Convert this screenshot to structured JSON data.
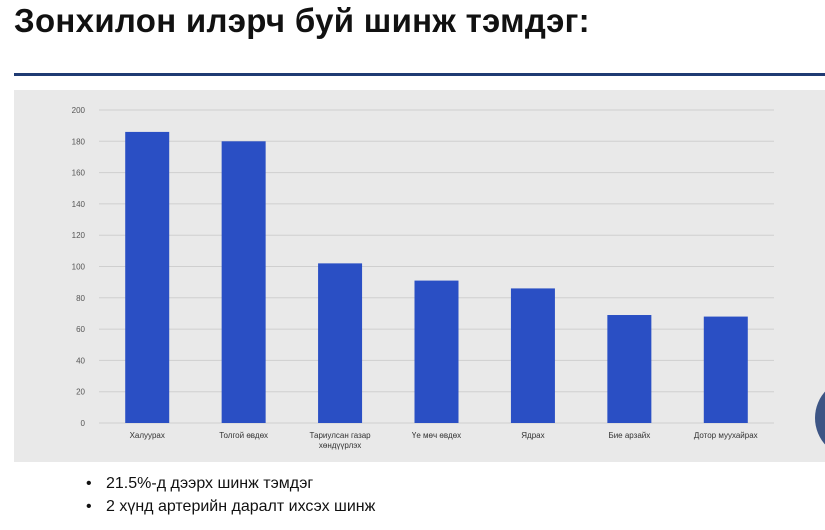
{
  "slide": {
    "title": "Зонхилон илэрч буй шинж тэмдэг:"
  },
  "bullets": [
    "21.5%-д дээрх шинж тэмдэг",
    "2 хүнд артерийн даралт ихсэх шинж"
  ],
  "colors": {
    "bar": "#2a4fc4",
    "accent_rule": "#1f3b73",
    "panel": "#e9e9e9",
    "grid": "#cfcfcf"
  },
  "chart_data": {
    "type": "bar",
    "categories": [
      "Халуурах",
      "Толгой өвдөх",
      [
        "Тариулсан газар",
        "хөндүүрлэх"
      ],
      "Үе мөч өвдөх",
      "Ядрах",
      "Бие арзайх",
      "Дотор муухайрах"
    ],
    "values": [
      186,
      180,
      102,
      91,
      86,
      69,
      68
    ],
    "ylim": [
      0,
      200
    ],
    "yticks": [
      0,
      20,
      40,
      60,
      80,
      100,
      120,
      140,
      160,
      180,
      200
    ],
    "grid": true,
    "legend": false
  }
}
